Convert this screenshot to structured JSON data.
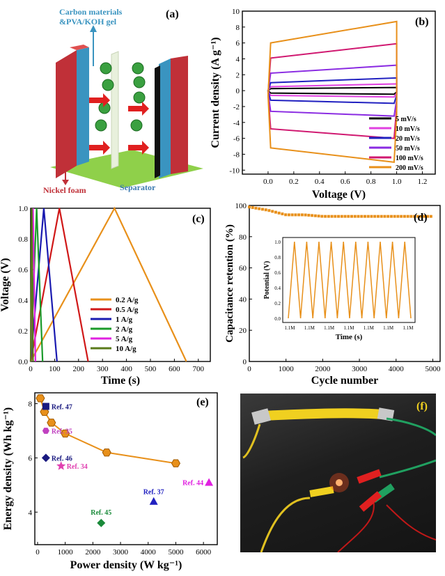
{
  "panels": {
    "a": {
      "label": "(a)",
      "text_carbon_line1": "Carbon materials",
      "text_carbon_line2": "&PVA/KOH gel",
      "text_nickel": "Nickel foam",
      "text_separator": "Separator"
    },
    "f": {
      "label": "(f)"
    }
  },
  "chart_data": [
    {
      "panel": "(b)",
      "type": "line",
      "xlabel": "Voltage (V)",
      "ylabel": "Current density (A g⁻¹)",
      "xlim": [
        -0.2,
        1.3
      ],
      "ylim": [
        -10.5,
        10
      ],
      "xticks": [
        "0.0",
        "0.2",
        "0.4",
        "0.6",
        "0.8",
        "1.0",
        "1.2"
      ],
      "yticks": [
        "-10",
        "-8",
        "-6",
        "-4",
        "-2",
        "0",
        "2",
        "4",
        "6",
        "8",
        "10"
      ],
      "legend_placement": "bottom-right",
      "series": [
        {
          "name": "5 mV/s",
          "color": "#000000",
          "upper": [
            0.25,
            0.4
          ],
          "lower": [
            -0.3,
            -0.45
          ]
        },
        {
          "name": "10 mV/s",
          "color": "#e040e0",
          "upper": [
            0.5,
            0.85
          ],
          "lower": [
            -0.6,
            -0.8
          ]
        },
        {
          "name": "20 mV/s",
          "color": "#2020c0",
          "upper": [
            1.0,
            1.6
          ],
          "lower": [
            -1.2,
            -1.6
          ]
        },
        {
          "name": "50 mV/s",
          "color": "#8a2be2",
          "upper": [
            2.2,
            3.2
          ],
          "lower": [
            -2.6,
            -3.2
          ]
        },
        {
          "name": "100 mV/s",
          "color": "#d01870",
          "upper": [
            4.1,
            5.9
          ],
          "lower": [
            -4.8,
            -6.0
          ]
        },
        {
          "name": "200 mV/s",
          "color": "#e8901a",
          "upper": [
            6.0,
            8.7
          ],
          "lower": [
            -7.2,
            -9.0
          ]
        }
      ]
    },
    {
      "panel": "(c)",
      "type": "line",
      "xlabel": "Time (s)",
      "ylabel": "Voltage (V)",
      "xlim": [
        0,
        750
      ],
      "ylim": [
        0,
        1.0
      ],
      "xticks": [
        "0",
        "100",
        "200",
        "300",
        "400",
        "500",
        "600",
        "700"
      ],
      "yticks": [
        "0.0",
        "0.2",
        "0.4",
        "0.6",
        "0.8",
        "1.0"
      ],
      "legend_placement": "bottom-center",
      "series": [
        {
          "name": "0.2 A/g",
          "color": "#e8901a",
          "x": [
            0,
            350,
            650
          ],
          "y": [
            0,
            1,
            0
          ]
        },
        {
          "name": "0.5 A/g",
          "color": "#d01818",
          "x": [
            0,
            120,
            240
          ],
          "y": [
            0,
            1,
            0
          ]
        },
        {
          "name": "1 A/g",
          "color": "#1a1ab0",
          "x": [
            0,
            55,
            110
          ],
          "y": [
            0,
            1,
            0
          ]
        },
        {
          "name": "2 A/g",
          "color": "#1a9a2a",
          "x": [
            0,
            25,
            50
          ],
          "y": [
            0,
            1,
            0
          ]
        },
        {
          "name": "5 A/g",
          "color": "#e020e0",
          "x": [
            0,
            10,
            20
          ],
          "y": [
            0,
            1,
            0
          ]
        },
        {
          "name": "10 A/g",
          "color": "#5a7a1a",
          "x": [
            0,
            5,
            10
          ],
          "y": [
            0,
            1,
            0
          ]
        }
      ]
    },
    {
      "panel": "(d)",
      "type": "scatter",
      "xlabel": "Cycle number",
      "ylabel": "Capacitance retention (%)",
      "xlim": [
        0,
        5200
      ],
      "ylim": [
        0,
        100
      ],
      "xticks": [
        "0",
        "1000",
        "2000",
        "3000",
        "4000",
        "5000"
      ],
      "yticks": [
        "0",
        "20",
        "40",
        "60",
        "80",
        "100"
      ],
      "color": "#e8901a",
      "x": [
        0,
        500,
        1000,
        1500,
        2000,
        2500,
        3000,
        3500,
        4000,
        4500,
        5000
      ],
      "y": [
        99,
        97,
        94,
        94,
        93,
        93,
        93,
        93,
        93,
        93,
        93
      ],
      "inset": {
        "type": "line",
        "xlabel": "Time (s)",
        "ylabel": "Potential (V)",
        "xticks": [
          "1.1M",
          "1.1M",
          "1.1M",
          "1.1M",
          "1.1M",
          "1.1M",
          "1.1M"
        ],
        "yticks": [
          "0.0",
          "0.2",
          "0.4",
          "0.6",
          "0.8",
          "1.0"
        ],
        "cycles": 10,
        "color": "#e8901a"
      }
    },
    {
      "panel": "(e)",
      "type": "scatter",
      "xlabel": "Power density (W kg⁻¹)",
      "ylabel": "Energy density (Wh kg⁻¹)",
      "xlim": [
        -100,
        6500
      ],
      "ylim": [
        2.8,
        8.4
      ],
      "xticks": [
        "0",
        "1000",
        "2000",
        "3000",
        "4000",
        "5000",
        "6000"
      ],
      "yticks": [
        "4",
        "6",
        "8"
      ],
      "this_work": {
        "color": "#e8901a",
        "x": [
          100,
          250,
          500,
          1000,
          2500,
          5000
        ],
        "y": [
          8.2,
          7.7,
          7.3,
          6.9,
          6.2,
          5.8
        ]
      },
      "references": [
        {
          "label": "Ref. 47",
          "x": 300,
          "y": 7.9,
          "color": "#1a1a80",
          "marker": "square"
        },
        {
          "label": "Ref. 35",
          "x": 300,
          "y": 7.0,
          "color": "#c040c0",
          "marker": "hexagon"
        },
        {
          "label": "Ref. 46",
          "x": 300,
          "y": 6.0,
          "color": "#1a1a80",
          "marker": "diamond"
        },
        {
          "label": "Ref. 34",
          "x": 850,
          "y": 5.7,
          "color": "#e040b0",
          "marker": "star"
        },
        {
          "label": "Ref. 37",
          "x": 4200,
          "y": 4.4,
          "color": "#2020c0",
          "marker": "triangle"
        },
        {
          "label": "Ref. 44",
          "x": 6200,
          "y": 5.1,
          "color": "#e020e0",
          "marker": "triangle"
        },
        {
          "label": "Ref. 45",
          "x": 2300,
          "y": 3.6,
          "color": "#1a8a3a",
          "marker": "diamond"
        }
      ]
    }
  ]
}
